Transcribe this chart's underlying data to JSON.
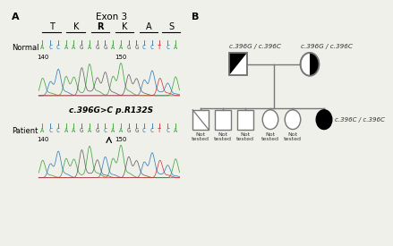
{
  "panel_A_label": "A",
  "panel_B_label": "B",
  "exon_label": "Exon 3",
  "aa_labels": [
    "T",
    "K",
    "R",
    "K",
    "A",
    "S"
  ],
  "normal_label": "Normal",
  "patient_label": "Patient",
  "patient_mutation": "c.396G>C p.R132S",
  "dna_seq": "ACCAAGAGGAAGGCCTCA",
  "dna_seq_patient": "ACCAAGAGCAAGGCCTCA",
  "pos_140": "140",
  "pos_150": "150",
  "father_genotype": "c.396G / c.396C",
  "mother_genotype": "c.396G / c.396C",
  "proband_genotype": "c.396C / c.396C",
  "not_tested": "Not\ntested",
  "bg_color": "#f0f0eb",
  "dna_colors": {
    "A": "#2ca02c",
    "C": "#1f77b4",
    "G": "#555555",
    "T": "#d62728"
  },
  "line_color": "#777777",
  "chromo_seeds_normal": [
    42,
    17,
    55,
    88,
    33,
    91,
    12,
    67,
    44,
    23,
    78,
    35,
    61,
    14,
    82,
    50,
    29,
    73
  ],
  "chromo_seeds_patient": [
    99,
    21,
    63,
    37,
    84,
    11,
    56,
    45,
    72,
    18,
    93,
    40,
    66,
    28,
    75,
    52,
    31,
    87
  ]
}
